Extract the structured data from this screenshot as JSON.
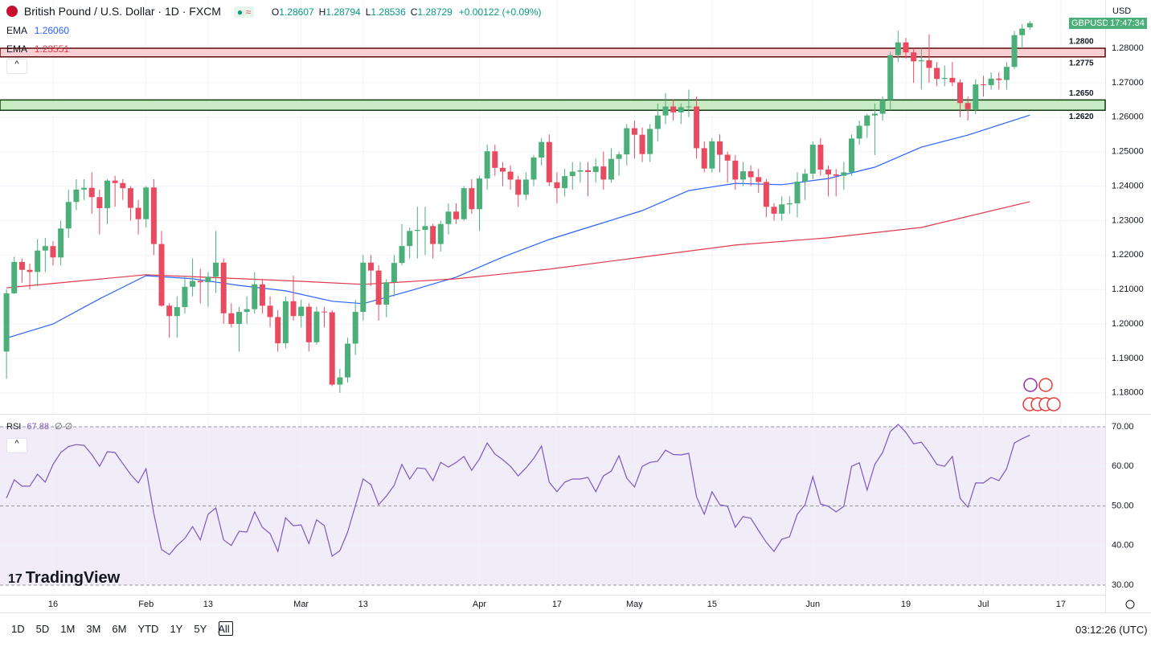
{
  "chart_data": {
    "type": "candlestick",
    "title": "British Pound / U.S. Dollar · 1D · FXCM",
    "header_fields": [
      "O",
      "H",
      "L",
      "C"
    ],
    "change_label": "+0.00122 (+0.09%)",
    "currency": "USD",
    "symbol": "GBPUSD",
    "countdown": "17:47:34",
    "up_color": "#4caf7a",
    "down_color": "#e84a5f",
    "grid": true,
    "xlim": [
      -0.84,
      141.71
    ],
    "xticks": [
      {
        "value": 6,
        "label": "16"
      },
      {
        "value": 18,
        "label": "Feb"
      },
      {
        "value": 26,
        "label": "13"
      },
      {
        "value": 38,
        "label": "Mar"
      },
      {
        "value": 46,
        "label": "13"
      },
      {
        "value": 61,
        "label": "Apr"
      },
      {
        "value": 71,
        "label": "17"
      },
      {
        "value": 81,
        "label": "May"
      },
      {
        "value": 91,
        "label": "15"
      },
      {
        "value": 104,
        "label": "Jun"
      },
      {
        "value": 116,
        "label": "19"
      },
      {
        "value": 126,
        "label": "Jul"
      },
      {
        "value": 136,
        "label": "17"
      }
    ],
    "ylim": [
      1.1739,
      1.294
    ],
    "yticks": [
      {
        "value": 1.18,
        "label": "1.18000"
      },
      {
        "value": 1.19,
        "label": "1.19000"
      },
      {
        "value": 1.2,
        "label": "1.20000"
      },
      {
        "value": 1.21,
        "label": "1.21000"
      },
      {
        "value": 1.22,
        "label": "1.22000"
      },
      {
        "value": 1.23,
        "label": "1.23000"
      },
      {
        "value": 1.24,
        "label": "1.24000"
      },
      {
        "value": 1.25,
        "label": "1.25000"
      },
      {
        "value": 1.26,
        "label": "1.26000"
      },
      {
        "value": 1.27,
        "label": "1.27000"
      },
      {
        "value": 1.28,
        "label": "1.28000"
      }
    ],
    "ohlc": [
      [
        1.192,
        1.21,
        1.1841,
        1.2089
      ],
      [
        1.2089,
        1.2195,
        1.2087,
        1.218
      ],
      [
        1.218,
        1.219,
        1.212,
        1.2157
      ],
      [
        1.2157,
        1.2175,
        1.21,
        1.2151
      ],
      [
        1.2151,
        1.2247,
        1.211,
        1.2213
      ],
      [
        1.2213,
        1.225,
        1.215,
        1.2226
      ],
      [
        1.2226,
        1.224,
        1.217,
        1.2193
      ],
      [
        1.2193,
        1.23,
        1.217,
        1.2277
      ],
      [
        1.2277,
        1.239,
        1.225,
        1.2354
      ],
      [
        1.2354,
        1.242,
        1.233,
        1.239
      ],
      [
        1.239,
        1.242,
        1.236,
        1.2395
      ],
      [
        1.2395,
        1.244,
        1.232,
        1.2368
      ],
      [
        1.2368,
        1.239,
        1.226,
        1.2336
      ],
      [
        1.2336,
        1.242,
        1.229,
        1.2416
      ],
      [
        1.2416,
        1.243,
        1.234,
        1.2409
      ],
      [
        1.2409,
        1.242,
        1.236,
        1.2394
      ],
      [
        1.2394,
        1.24,
        1.23,
        1.2337
      ],
      [
        1.2337,
        1.236,
        1.226,
        1.2304
      ],
      [
        1.2304,
        1.24,
        1.228,
        1.2396
      ],
      [
        1.2396,
        1.242,
        1.22,
        1.2232
      ],
      [
        1.2232,
        1.227,
        1.205,
        1.2053
      ],
      [
        1.2053,
        1.206,
        1.196,
        1.2023
      ],
      [
        1.2023,
        1.208,
        1.196,
        1.2049
      ],
      [
        1.2049,
        1.214,
        1.203,
        1.2108
      ],
      [
        1.2108,
        1.219,
        1.208,
        1.2125
      ],
      [
        1.2125,
        1.216,
        1.206,
        1.2121
      ],
      [
        1.2121,
        1.215,
        1.205,
        1.2137
      ],
      [
        1.2137,
        1.227,
        1.209,
        1.2178
      ],
      [
        1.2178,
        1.219,
        1.2,
        1.2031
      ],
      [
        1.2031,
        1.206,
        1.199,
        1.2
      ],
      [
        1.2,
        1.205,
        1.192,
        1.2035
      ],
      [
        1.2035,
        1.208,
        1.2,
        1.2043
      ],
      [
        1.2043,
        1.215,
        1.203,
        1.2115
      ],
      [
        1.2115,
        1.213,
        1.203,
        1.2053
      ],
      [
        1.2053,
        1.208,
        1.199,
        1.202
      ],
      [
        1.202,
        1.204,
        1.192,
        1.1944
      ],
      [
        1.1944,
        1.208,
        1.193,
        1.2066
      ],
      [
        1.2066,
        1.214,
        1.201,
        1.2023
      ],
      [
        1.2023,
        1.207,
        1.199,
        1.205
      ],
      [
        1.205,
        1.206,
        1.192,
        1.1947
      ],
      [
        1.1947,
        1.205,
        1.194,
        1.2036
      ],
      [
        1.2036,
        1.205,
        1.199,
        1.2034
      ],
      [
        1.2034,
        1.204,
        1.182,
        1.1824
      ],
      [
        1.1824,
        1.187,
        1.18,
        1.1845
      ],
      [
        1.1845,
        1.196,
        1.183,
        1.1943
      ],
      [
        1.1943,
        1.207,
        1.191,
        1.2035
      ],
      [
        1.2035,
        1.22,
        1.201,
        1.2178
      ],
      [
        1.2178,
        1.22,
        1.211,
        1.2155
      ],
      [
        1.2155,
        1.217,
        1.201,
        1.2056
      ],
      [
        1.2056,
        1.213,
        1.202,
        1.2121
      ],
      [
        1.2121,
        1.22,
        1.208,
        1.2177
      ],
      [
        1.2177,
        1.229,
        1.217,
        1.2226
      ],
      [
        1.2226,
        1.228,
        1.219,
        1.227
      ],
      [
        1.227,
        1.234,
        1.219,
        1.2273
      ],
      [
        1.2273,
        1.234,
        1.22,
        1.2284
      ],
      [
        1.2284,
        1.229,
        1.219,
        1.2232
      ],
      [
        1.2232,
        1.23,
        1.221,
        1.229
      ],
      [
        1.229,
        1.235,
        1.226,
        1.2326
      ],
      [
        1.2326,
        1.235,
        1.229,
        1.2304
      ],
      [
        1.2304,
        1.24,
        1.23,
        1.2394
      ],
      [
        1.2394,
        1.242,
        1.232,
        1.2333
      ],
      [
        1.2333,
        1.243,
        1.227,
        1.2422
      ],
      [
        1.2422,
        1.252,
        1.239,
        1.2501
      ],
      [
        1.2501,
        1.252,
        1.243,
        1.2453
      ],
      [
        1.2453,
        1.247,
        1.24,
        1.2442
      ],
      [
        1.2442,
        1.246,
        1.239,
        1.2419
      ],
      [
        1.2419,
        1.243,
        1.234,
        1.2375
      ],
      [
        1.2375,
        1.244,
        1.236,
        1.2419
      ],
      [
        1.2419,
        1.249,
        1.24,
        1.2483
      ],
      [
        1.2483,
        1.254,
        1.246,
        1.2528
      ],
      [
        1.2528,
        1.255,
        1.24,
        1.2411
      ],
      [
        1.2411,
        1.244,
        1.235,
        1.2394
      ],
      [
        1.2394,
        1.245,
        1.237,
        1.2429
      ],
      [
        1.2429,
        1.247,
        1.239,
        1.2442
      ],
      [
        1.2442,
        1.247,
        1.241,
        1.2446
      ],
      [
        1.2446,
        1.247,
        1.237,
        1.2441
      ],
      [
        1.2441,
        1.248,
        1.241,
        1.2457
      ],
      [
        1.2457,
        1.25,
        1.239,
        1.2419
      ],
      [
        1.2419,
        1.251,
        1.241,
        1.2479
      ],
      [
        1.2479,
        1.25,
        1.243,
        1.2492
      ],
      [
        1.2492,
        1.258,
        1.246,
        1.2568
      ],
      [
        1.2568,
        1.259,
        1.248,
        1.2549
      ],
      [
        1.2549,
        1.257,
        1.247,
        1.2493
      ],
      [
        1.2493,
        1.258,
        1.247,
        1.2566
      ],
      [
        1.2566,
        1.264,
        1.253,
        1.2605
      ],
      [
        1.2605,
        1.267,
        1.258,
        1.2631
      ],
      [
        1.2631,
        1.265,
        1.259,
        1.2614
      ],
      [
        1.2614,
        1.264,
        1.258,
        1.2629
      ],
      [
        1.2629,
        1.268,
        1.26,
        1.2631
      ],
      [
        1.2631,
        1.266,
        1.248,
        1.251
      ],
      [
        1.251,
        1.253,
        1.244,
        1.2451
      ],
      [
        1.2451,
        1.254,
        1.244,
        1.253
      ],
      [
        1.253,
        1.255,
        1.244,
        1.2491
      ],
      [
        1.2491,
        1.25,
        1.241,
        1.2474
      ],
      [
        1.2474,
        1.249,
        1.239,
        1.2419
      ],
      [
        1.2419,
        1.247,
        1.24,
        1.2443
      ],
      [
        1.2443,
        1.246,
        1.24,
        1.2426
      ],
      [
        1.2426,
        1.245,
        1.238,
        1.2412
      ],
      [
        1.2412,
        1.242,
        1.231,
        1.234
      ],
      [
        1.234,
        1.235,
        1.23,
        1.232
      ],
      [
        1.232,
        1.237,
        1.23,
        1.2347
      ],
      [
        1.2347,
        1.237,
        1.232,
        1.235
      ],
      [
        1.235,
        1.244,
        1.231,
        1.2413
      ],
      [
        1.2413,
        1.245,
        1.236,
        1.2436
      ],
      [
        1.2436,
        1.253,
        1.242,
        1.252
      ],
      [
        1.252,
        1.254,
        1.243,
        1.2448
      ],
      [
        1.2448,
        1.246,
        1.237,
        1.2434
      ],
      [
        1.2434,
        1.245,
        1.237,
        1.243
      ],
      [
        1.243,
        1.247,
        1.239,
        1.244
      ],
      [
        1.244,
        1.255,
        1.243,
        1.2538
      ],
      [
        1.2538,
        1.259,
        1.252,
        1.2575
      ],
      [
        1.2575,
        1.261,
        1.254,
        1.2605
      ],
      [
        1.2605,
        1.264,
        1.249,
        1.261
      ],
      [
        1.261,
        1.266,
        1.259,
        1.265
      ],
      [
        1.265,
        1.279,
        1.262,
        1.278
      ],
      [
        1.278,
        1.285,
        1.276,
        1.2817
      ],
      [
        1.2817,
        1.283,
        1.277,
        1.2788
      ],
      [
        1.2788,
        1.28,
        1.27,
        1.2762
      ],
      [
        1.2762,
        1.28,
        1.268,
        1.2765
      ],
      [
        1.2765,
        1.284,
        1.27,
        1.2743
      ],
      [
        1.2743,
        1.276,
        1.269,
        1.2711
      ],
      [
        1.2711,
        1.275,
        1.269,
        1.2714
      ],
      [
        1.2714,
        1.276,
        1.269,
        1.2701
      ],
      [
        1.2701,
        1.271,
        1.26,
        1.2641
      ],
      [
        1.2641,
        1.266,
        1.259,
        1.2623
      ],
      [
        1.2623,
        1.271,
        1.261,
        1.2695
      ],
      [
        1.2695,
        1.272,
        1.266,
        1.2693
      ],
      [
        1.2693,
        1.273,
        1.268,
        1.2712
      ],
      [
        1.2712,
        1.273,
        1.268,
        1.2708
      ],
      [
        1.2708,
        1.276,
        1.268,
        1.2746
      ],
      [
        1.2746,
        1.285,
        1.274,
        1.2838
      ],
      [
        1.2838,
        1.287,
        1.28,
        1.2857
      ],
      [
        1.28607,
        1.28794,
        1.28536,
        1.28729
      ]
    ],
    "zones": [
      {
        "from": {
          "value": 1.2775,
          "label": "1.2775"
        },
        "to": {
          "value": 1.28,
          "label": "1.2800"
        },
        "color": "#fbd0d4",
        "border": "#5a0a0a"
      },
      {
        "from": {
          "value": 1.262,
          "label": "1.2620"
        },
        "to": {
          "value": 1.265,
          "label": "1.2650"
        },
        "color": "#c9ebc4",
        "border": "#0f3d0f"
      }
    ],
    "series": [
      {
        "name": "EMA",
        "color": "#2962ff",
        "legend_value": "1.26060",
        "x": [
          0,
          6,
          12,
          18,
          24,
          30,
          36,
          42,
          46,
          52,
          58,
          64,
          70,
          76,
          82,
          88,
          94,
          100,
          106,
          112,
          118,
          124,
          132
        ],
        "values": [
          1.1959,
          1.2,
          1.2073,
          1.214,
          1.2131,
          1.2112,
          1.2096,
          1.2066,
          1.2059,
          1.2096,
          1.2136,
          1.2194,
          1.2245,
          1.2287,
          1.2329,
          1.2387,
          1.2408,
          1.2404,
          1.2422,
          1.2455,
          1.2513,
          1.2548,
          1.2606
        ]
      },
      {
        "name": "EMA",
        "color": "#e0394c",
        "legend_value": "1.23551",
        "x": [
          0,
          18,
          36,
          46,
          58,
          70,
          82,
          94,
          106,
          118,
          132
        ],
        "values": [
          1.2105,
          1.2143,
          1.2126,
          1.2115,
          1.2131,
          1.2159,
          1.2194,
          1.2229,
          1.225,
          1.228,
          1.2355
        ]
      }
    ],
    "rsi": {
      "name": "RSI",
      "color": "#7e57c2",
      "legend_value": "67.88",
      "legend_extra": "∅ ∅",
      "ylim": [
        27.56,
        73.25
      ],
      "yticks": [
        {
          "value": 30,
          "label": "30.00"
        },
        {
          "value": 40,
          "label": "40.00"
        },
        {
          "value": 50,
          "label": "50.00"
        },
        {
          "value": 60,
          "label": "60.00"
        },
        {
          "value": 70,
          "label": "70.00"
        }
      ],
      "levels": [
        30,
        50,
        70
      ],
      "values": [
        52,
        56.6,
        55,
        55,
        58,
        56,
        60.5,
        63.5,
        65,
        65.5,
        65.3,
        63,
        60,
        63.7,
        63.5,
        60.7,
        58,
        55.8,
        59.4,
        48,
        39,
        37.7,
        40,
        41.8,
        44.8,
        41.4,
        47.9,
        49.5,
        41.4,
        40,
        43.6,
        43.4,
        48.5,
        44.6,
        43,
        38.5,
        47,
        45,
        45.2,
        40.5,
        46.5,
        45,
        37.3,
        38.7,
        43.4,
        50.1,
        56.8,
        55.4,
        50.3,
        52.5,
        55.2,
        60.5,
        56.8,
        59.6,
        59.4,
        56.4,
        61,
        59.8,
        61,
        62.5,
        59,
        61.9,
        65.9,
        63.1,
        61.7,
        60,
        57.6,
        59.6,
        62,
        65.1,
        56,
        53.6,
        56,
        56.8,
        56.8,
        57.2,
        53.6,
        57.6,
        58.8,
        62.7,
        57,
        54.8,
        60,
        61,
        61.3,
        64.1,
        63,
        62.9,
        63.3,
        52.3,
        47.9,
        53.6,
        50.3,
        49.9,
        44.6,
        47.3,
        46.9,
        43.8,
        40.8,
        38.5,
        41.6,
        42.2,
        47.9,
        50.3,
        57.4,
        50.5,
        49.9,
        48.5,
        49.9,
        60,
        60.9,
        54,
        60.5,
        63.5,
        68.8,
        70.6,
        68.6,
        65.7,
        66.1,
        63.5,
        60.5,
        60,
        62.5,
        51.9,
        49.7,
        55.8,
        55.8,
        57.2,
        56.4,
        59.4,
        65.9,
        67,
        67.88
      ]
    },
    "brand": "TradingView",
    "ranges": [
      "1D",
      "5D",
      "1M",
      "3M",
      "6M",
      "YTD",
      "1Y",
      "5Y",
      "All"
    ],
    "clock": "03:12:26 (UTC)"
  }
}
